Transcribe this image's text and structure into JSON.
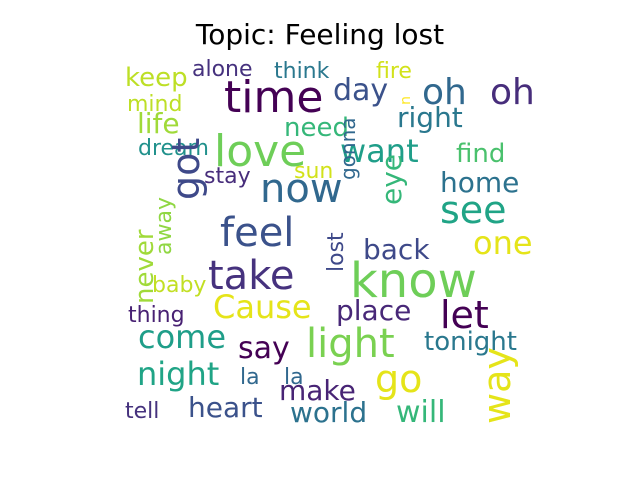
{
  "chart_data": {
    "type": "wordcloud",
    "title": "Topic: Feeling lost",
    "words": [
      {
        "text": "keep",
        "color": "#bddf26"
      },
      {
        "text": "alone",
        "color": "#46327e"
      },
      {
        "text": "think",
        "color": "#2a788e"
      },
      {
        "text": "fire",
        "color": "#d2e21b"
      },
      {
        "text": "time",
        "color": "#440154"
      },
      {
        "text": "day",
        "color": "#3b528b"
      },
      {
        "text": "oh",
        "color": "#31688e"
      },
      {
        "text": "oh",
        "color": "#472d7b"
      },
      {
        "text": "u",
        "color": "#fde725"
      },
      {
        "text": "mind",
        "color": "#bddf26"
      },
      {
        "text": "life",
        "color": "#a0da39"
      },
      {
        "text": "need",
        "color": "#35b779"
      },
      {
        "text": "right",
        "color": "#2a788e"
      },
      {
        "text": "dream",
        "color": "#21918c"
      },
      {
        "text": "love",
        "color": "#6ece58"
      },
      {
        "text": "want",
        "color": "#1f9e89"
      },
      {
        "text": "find",
        "color": "#4ac16d"
      },
      {
        "text": "stay",
        "color": "#472d7b"
      },
      {
        "text": "sun",
        "color": "#d2e21b"
      },
      {
        "text": "got",
        "color": "#3e4989"
      },
      {
        "text": "now",
        "color": "#31688e"
      },
      {
        "text": "home",
        "color": "#2c728e"
      },
      {
        "text": "eye",
        "color": "#35b779"
      },
      {
        "text": "see",
        "color": "#20a486"
      },
      {
        "text": "gonna",
        "color": "#31688e"
      },
      {
        "text": "away",
        "color": "#90d743"
      },
      {
        "text": "feel",
        "color": "#3b528b"
      },
      {
        "text": "lost",
        "color": "#3e4989"
      },
      {
        "text": "back",
        "color": "#3e4989"
      },
      {
        "text": "one",
        "color": "#e5e419"
      },
      {
        "text": "never",
        "color": "#a0da39"
      },
      {
        "text": "take",
        "color": "#46327e"
      },
      {
        "text": "know",
        "color": "#6ece58"
      },
      {
        "text": "baby",
        "color": "#c2df23"
      },
      {
        "text": "Cause",
        "color": "#e5e419"
      },
      {
        "text": "thing",
        "color": "#482173"
      },
      {
        "text": "place",
        "color": "#482878"
      },
      {
        "text": "let",
        "color": "#440154"
      },
      {
        "text": "come",
        "color": "#1f9e89"
      },
      {
        "text": "say",
        "color": "#440154"
      },
      {
        "text": "light",
        "color": "#7ad151"
      },
      {
        "text": "tonight",
        "color": "#2a788e"
      },
      {
        "text": "night",
        "color": "#20a486"
      },
      {
        "text": "la",
        "color": "#31688e"
      },
      {
        "text": "la",
        "color": "#31688e"
      },
      {
        "text": "make",
        "color": "#482475"
      },
      {
        "text": "go",
        "color": "#e5e419"
      },
      {
        "text": "way",
        "color": "#e5e419"
      },
      {
        "text": "tell",
        "color": "#46327e"
      },
      {
        "text": "heart",
        "color": "#3b528b"
      },
      {
        "text": "world",
        "color": "#2c728e"
      },
      {
        "text": "will",
        "color": "#35b779"
      }
    ]
  }
}
